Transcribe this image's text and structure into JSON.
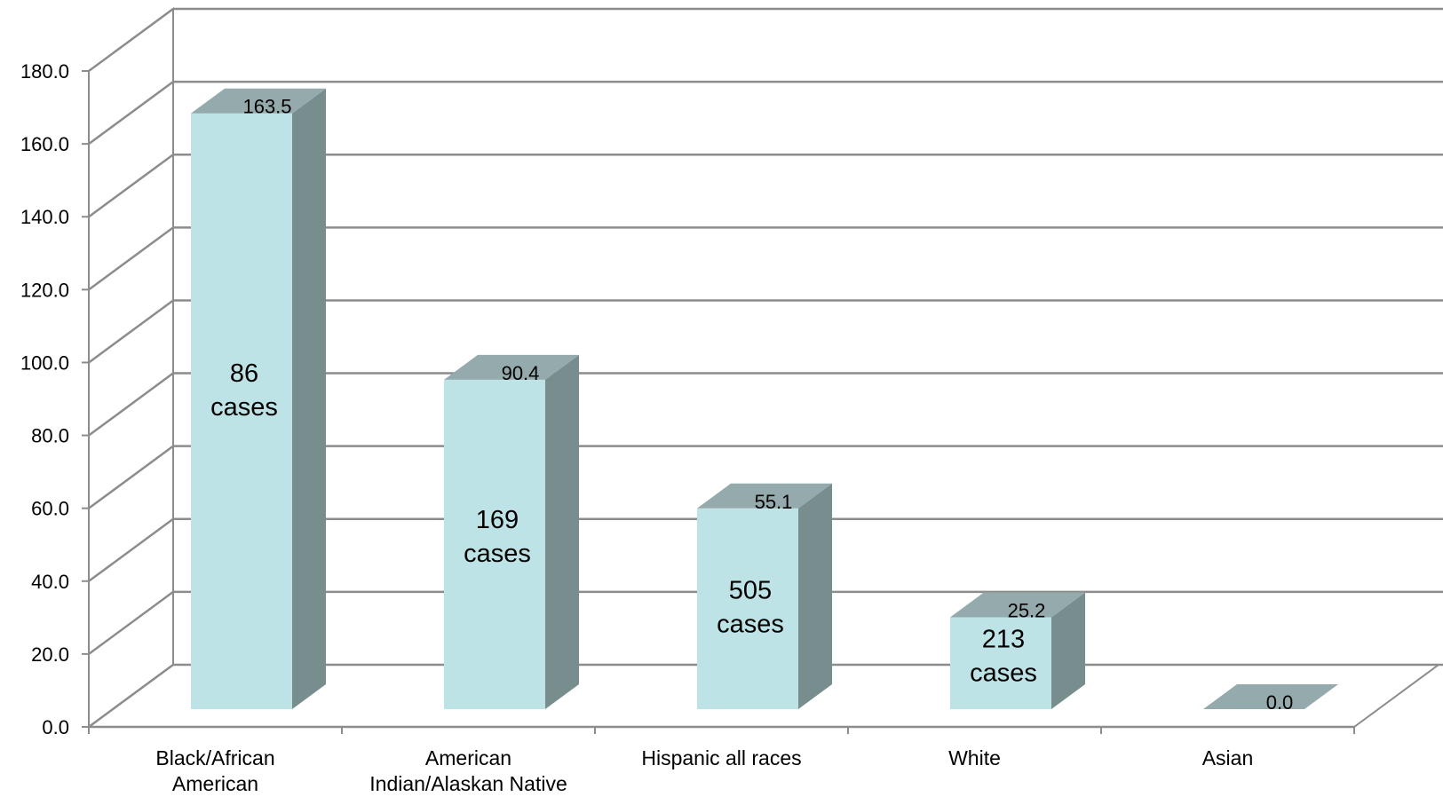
{
  "chart_data": {
    "type": "bar",
    "categories": [
      [
        "Black/African",
        "American"
      ],
      [
        "American",
        "Indian/Alaskan Native"
      ],
      [
        "Hispanic all races"
      ],
      [
        "White"
      ],
      [
        "Asian"
      ]
    ],
    "values": [
      163.5,
      90.4,
      55.1,
      25.2,
      0.0
    ],
    "value_labels": [
      "163.5",
      "90.4",
      "55.1",
      "25.2",
      "0.0"
    ],
    "case_labels": [
      [
        "86",
        "cases"
      ],
      [
        "169",
        "cases"
      ],
      [
        "505",
        "cases"
      ],
      [
        "213",
        "cases"
      ],
      []
    ],
    "yticks": [
      "0.0",
      "20.0",
      "40.0",
      "60.0",
      "80.0",
      "100.0",
      "120.0",
      "140.0",
      "160.0",
      "180.0"
    ],
    "ylim": [
      0,
      180
    ],
    "title": "",
    "xlabel": "",
    "ylabel": "",
    "grid": true,
    "legend": "none",
    "three_d": true,
    "colors": {
      "bar_front": "#bde3e6",
      "bar_side": "#778d8e",
      "bar_top": "#94aaac",
      "grid": "#8c8c8c",
      "back_wall": "#ffffff"
    }
  }
}
